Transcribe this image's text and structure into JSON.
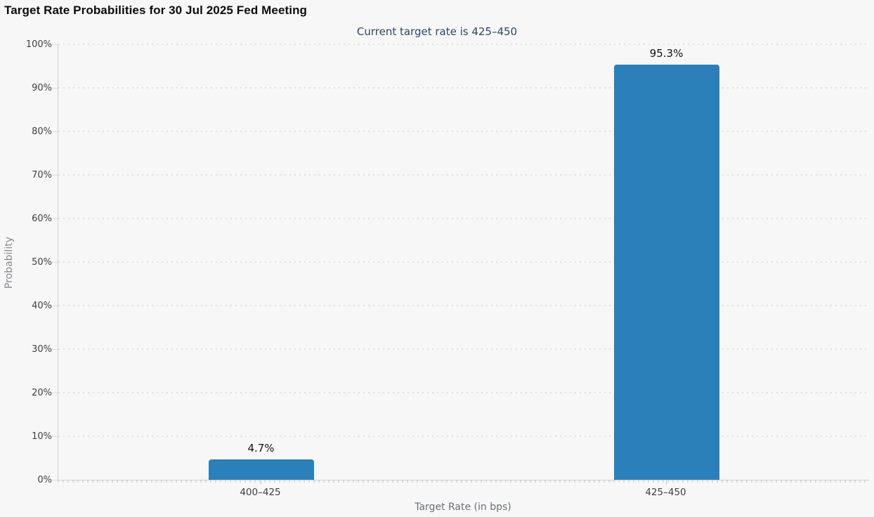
{
  "chart_data": {
    "type": "bar",
    "title": "Target Rate Probabilities for 30 Jul 2025 Fed Meeting",
    "subtitle": "Current target rate is 425–450",
    "categories": [
      "400–425",
      "425–450"
    ],
    "values": [
      4.7,
      95.3
    ],
    "value_labels": [
      "4.7%",
      "95.3%"
    ],
    "xlabel": "Target Rate (in bps)",
    "ylabel": "Probability",
    "ylim": [
      0,
      100
    ],
    "ytick_step": 10,
    "ytick_labels": [
      "0%",
      "10%",
      "20%",
      "30%",
      "40%",
      "50%",
      "60%",
      "70%",
      "80%",
      "90%",
      "100%"
    ],
    "grid": "horizontal-dotted",
    "legend": "none",
    "bar_color": "#2b80b9",
    "background_color": "#f7f7f7",
    "subtitle_color": "#2e4468"
  }
}
